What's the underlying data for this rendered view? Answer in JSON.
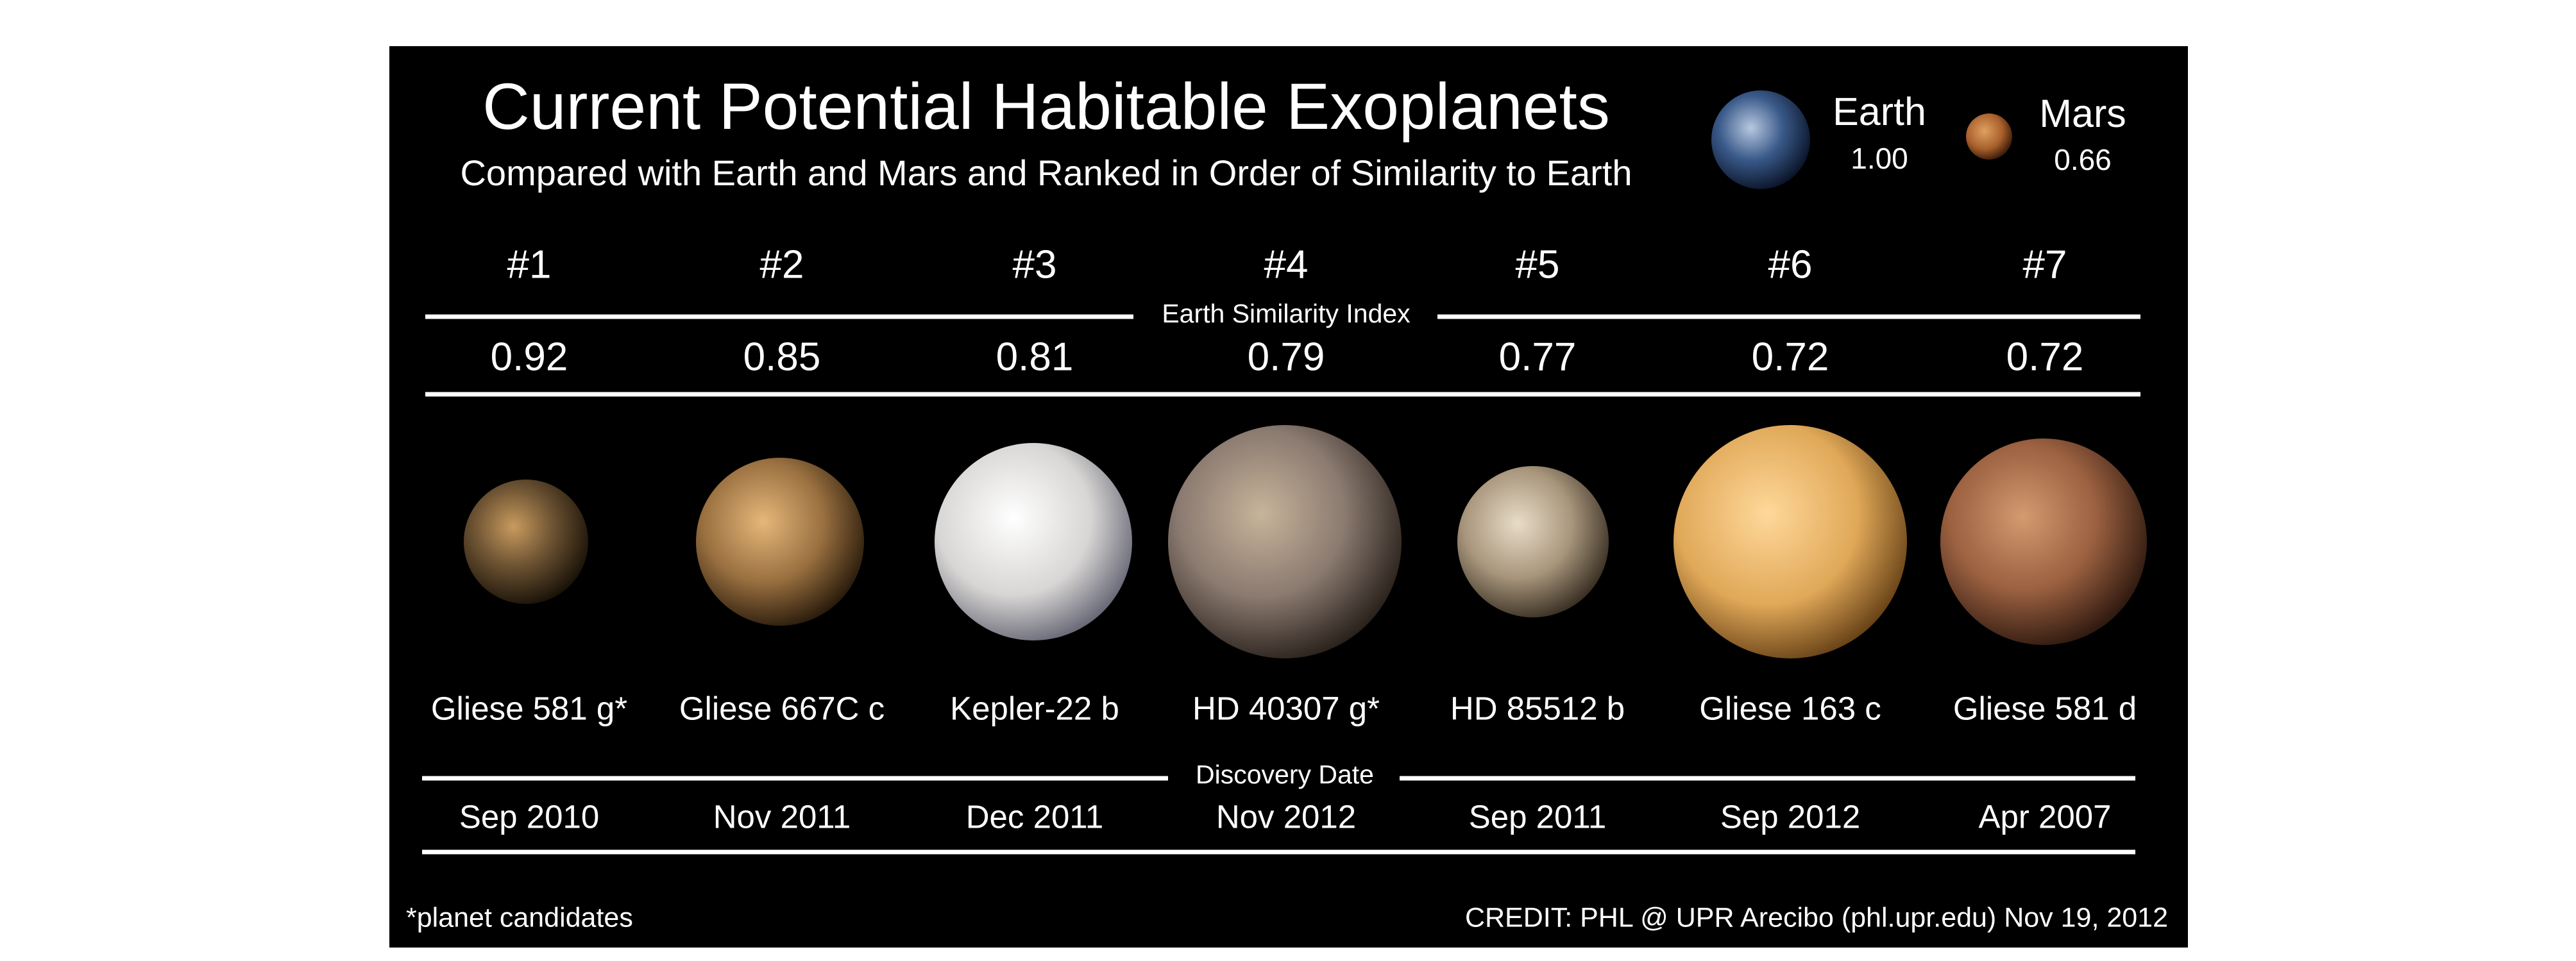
{
  "header": {
    "title": "Current Potential Habitable Exoplanets",
    "subtitle": "Compared with Earth and Mars and Ranked in Order of Similarity to Earth"
  },
  "reference": [
    {
      "name": "Earth",
      "esi": "1.00"
    },
    {
      "name": "Mars",
      "esi": "0.66"
    }
  ],
  "esi_label": "Earth Similarity Index",
  "discovery_label": "Discovery Date",
  "planets": [
    {
      "rank": "#1",
      "esi": "0.92",
      "name": "Gliese 581 g*",
      "date": "Sep 2010"
    },
    {
      "rank": "#2",
      "esi": "0.85",
      "name": "Gliese 667C c",
      "date": "Nov 2011"
    },
    {
      "rank": "#3",
      "esi": "0.81",
      "name": "Kepler-22 b",
      "date": "Dec 2011"
    },
    {
      "rank": "#4",
      "esi": "0.79",
      "name": "HD 40307 g*",
      "date": "Nov 2012"
    },
    {
      "rank": "#5",
      "esi": "0.77",
      "name": "HD 85512 b",
      "date": "Sep 2011"
    },
    {
      "rank": "#6",
      "esi": "0.72",
      "name": "Gliese 163 c",
      "date": "Sep 2012"
    },
    {
      "rank": "#7",
      "esi": "0.72",
      "name": "Gliese 581 d",
      "date": "Apr 2007"
    }
  ],
  "footer": {
    "note": "*planet candidates",
    "credit": "CREDIT: PHL @ UPR Arecibo (phl.upr.edu) Nov 19, 2012"
  }
}
